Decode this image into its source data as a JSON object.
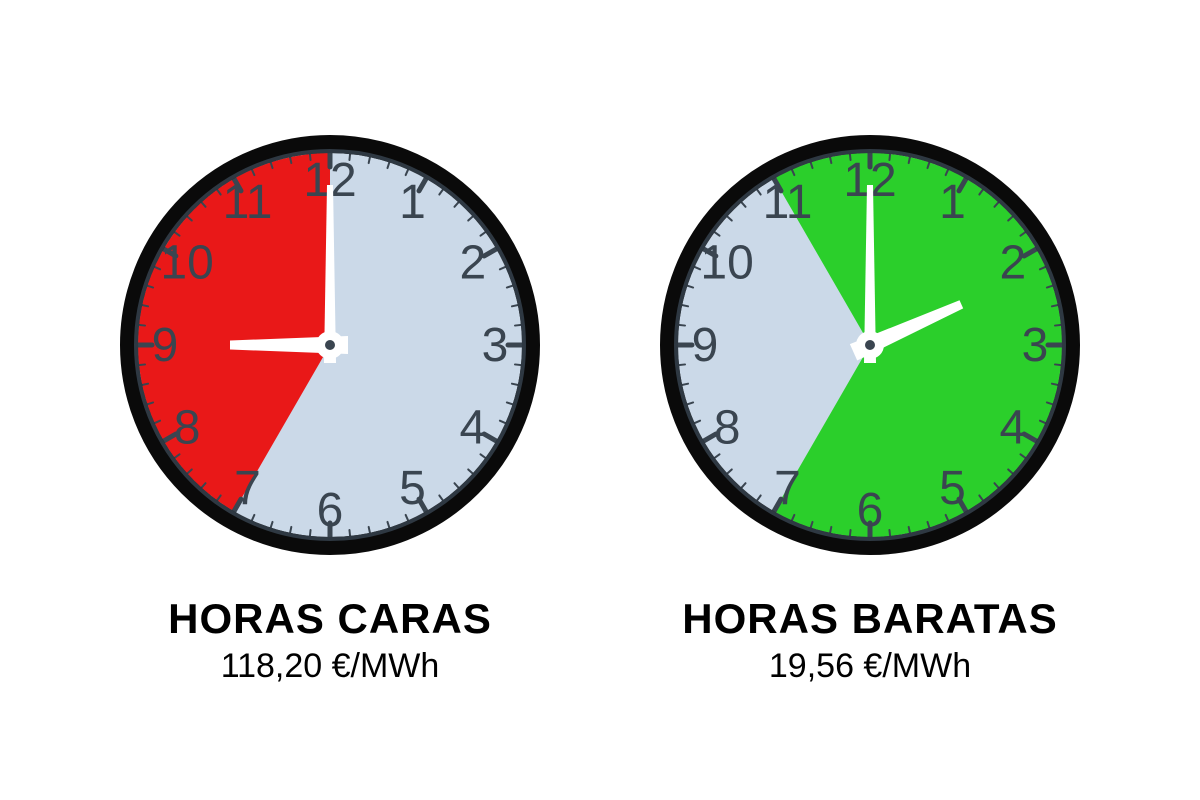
{
  "clocks": [
    {
      "id": "expensive",
      "label_title": "HORAS CARAS",
      "label_price": "118,20 €/MWh",
      "face_color": "#cbd9e8",
      "sector_color": "#e91818",
      "sector_start_hour": 7,
      "sector_end_hour": 12,
      "rim_outer": "#0a0a0a",
      "rim_inner": "#2e3842",
      "tick_color": "#3a4550",
      "number_color": "#3a4550",
      "hand_color": "#ffffff",
      "hour_hand_at": 9,
      "minute_hand_at": 0,
      "numbers": [
        "12",
        "1",
        "2",
        "3",
        "4",
        "5",
        "6",
        "7",
        "8",
        "9",
        "10",
        "11"
      ],
      "number_fontsize": 48
    },
    {
      "id": "cheap",
      "label_title": "HORAS BARATAS",
      "label_price": "19,56 €/MWh",
      "face_color": "#cbd9e8",
      "sector_color": "#2bcf2b",
      "sector_start_hour": 11,
      "sector_end_hour": 19,
      "rim_outer": "#0a0a0a",
      "rim_inner": "#2e3842",
      "tick_color": "#3a4550",
      "number_color": "#3a4550",
      "hand_color": "#ffffff",
      "hour_hand_at": 2.2,
      "minute_hand_at": 0,
      "numbers": [
        "12",
        "1",
        "2",
        "3",
        "4",
        "5",
        "6",
        "7",
        "8",
        "9",
        "10",
        "11"
      ],
      "number_fontsize": 48
    }
  ],
  "geometry": {
    "radius": 210,
    "rim_width": 18,
    "number_radius": 165,
    "major_tick_outer": 196,
    "major_tick_inner": 178,
    "minor_tick_outer": 196,
    "minor_tick_inner": 186,
    "hour_hand_len": 100,
    "minute_hand_len": 160,
    "hour_hand_w": 18,
    "minute_hand_w": 12,
    "hub_r": 14
  }
}
